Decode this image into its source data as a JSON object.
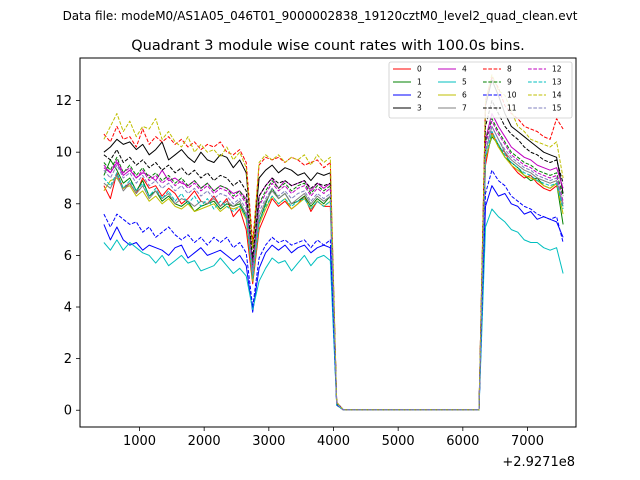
{
  "suptitle": "Data file: modeM0/AS1A05_046T01_9000002838_19120cztM0_level2_quad_clean.evt",
  "chart_data": {
    "type": "line",
    "title": "Quadrant 3 module wise count rates with 100.0s bins.",
    "xlabel": "",
    "ylabel": "",
    "x_offset_label": "+2.9271e8",
    "xlim": [
      80,
      7750
    ],
    "ylim": [
      -0.65,
      13.65
    ],
    "x_ticks": [
      1000,
      2000,
      3000,
      4000,
      5000,
      6000,
      7000
    ],
    "x_tick_labels": [
      "1000",
      "2000",
      "3000",
      "4000",
      "5000",
      "6000",
      "7000"
    ],
    "y_ticks": [
      0,
      2,
      4,
      6,
      8,
      10,
      12
    ],
    "y_tick_labels": [
      "0",
      "2",
      "4",
      "6",
      "8",
      "10",
      "12"
    ],
    "legend_position": "top-right",
    "legend_columns": 4,
    "x": [
      450,
      550,
      650,
      750,
      850,
      950,
      1050,
      1150,
      1250,
      1350,
      1450,
      1550,
      1650,
      1750,
      1850,
      1950,
      2050,
      2150,
      2250,
      2350,
      2450,
      2550,
      2650,
      2750,
      2850,
      2950,
      3050,
      3150,
      3250,
      3350,
      3450,
      3550,
      3650,
      3750,
      3850,
      3950,
      4050,
      4150,
      6250,
      6350,
      6450,
      6550,
      6650,
      6750,
      6850,
      6950,
      7050,
      7150,
      7250,
      7350,
      7450,
      7550
    ],
    "series": [
      {
        "name": "0",
        "color": "#ff0000",
        "style": "solid",
        "values": [
          8.7,
          8.2,
          9.2,
          8.6,
          8.8,
          8.4,
          9.0,
          8.6,
          8.7,
          8.3,
          8.6,
          8.4,
          8.0,
          8.2,
          8.5,
          8.1,
          8.0,
          8.3,
          7.9,
          8.2,
          7.5,
          7.8,
          7.0,
          4.9,
          7.0,
          7.6,
          8.2,
          7.9,
          8.1,
          7.8,
          8.0,
          8.3,
          7.7,
          8.1,
          7.9,
          7.9,
          0.2,
          0.02,
          0.02,
          9.5,
          10.8,
          10.2,
          10.0,
          9.5,
          9.2,
          9.0,
          9.1,
          8.8,
          8.6,
          8.5,
          8.7,
          8.0
        ]
      },
      {
        "name": "1",
        "color": "#008000",
        "style": "solid",
        "values": [
          9.1,
          9.7,
          9.3,
          8.8,
          9.0,
          8.5,
          8.9,
          8.3,
          8.5,
          8.1,
          8.3,
          8.0,
          7.9,
          8.1,
          7.7,
          7.9,
          8.0,
          8.1,
          7.8,
          8.0,
          7.9,
          8.0,
          7.5,
          5.0,
          7.3,
          8.0,
          8.6,
          8.2,
          8.4,
          8.0,
          8.1,
          8.3,
          7.9,
          8.2,
          8.0,
          8.3,
          0.2,
          0.02,
          0.02,
          9.8,
          10.6,
          10.3,
          9.8,
          9.6,
          9.4,
          9.1,
          8.9,
          9.0,
          8.7,
          8.6,
          8.8,
          7.2
        ]
      },
      {
        "name": "2",
        "color": "#0000ff",
        "style": "solid",
        "values": [
          7.2,
          6.6,
          7.1,
          6.6,
          6.4,
          6.5,
          6.2,
          6.4,
          6.3,
          6.2,
          6.0,
          6.3,
          6.4,
          5.9,
          6.1,
          6.3,
          6.0,
          6.1,
          6.2,
          6.0,
          5.8,
          6.0,
          5.6,
          3.8,
          5.5,
          6.1,
          6.4,
          6.2,
          6.4,
          6.1,
          6.3,
          6.4,
          6.1,
          6.3,
          6.4,
          6.3,
          0.2,
          0.02,
          0.02,
          7.9,
          8.7,
          8.3,
          8.4,
          8.0,
          7.9,
          7.6,
          7.7,
          7.4,
          7.5,
          7.4,
          7.3,
          6.7
        ]
      },
      {
        "name": "3",
        "color": "#000000",
        "style": "solid",
        "values": [
          10.0,
          10.2,
          10.5,
          10.3,
          10.4,
          10.1,
          10.3,
          9.9,
          10.1,
          10.4,
          9.7,
          9.9,
          10.1,
          9.8,
          9.6,
          10.0,
          9.7,
          9.6,
          9.9,
          9.8,
          9.4,
          9.7,
          9.2,
          6.3,
          9.0,
          9.3,
          9.5,
          9.2,
          9.4,
          9.3,
          9.1,
          9.2,
          8.9,
          9.2,
          9.1,
          9.2,
          0.3,
          0.02,
          0.02,
          11.8,
          12.8,
          12.2,
          11.5,
          11.0,
          10.8,
          10.6,
          10.4,
          10.2,
          10.0,
          9.9,
          9.8,
          8.4
        ]
      },
      {
        "name": "4",
        "color": "#bf00bf",
        "style": "solid",
        "values": [
          9.4,
          9.2,
          9.6,
          9.1,
          9.3,
          9.0,
          9.2,
          9.1,
          8.9,
          9.3,
          8.9,
          9.0,
          8.8,
          8.7,
          8.9,
          8.6,
          8.8,
          8.5,
          8.7,
          8.6,
          8.4,
          8.5,
          8.2,
          5.7,
          8.3,
          8.7,
          9.0,
          8.6,
          8.9,
          8.7,
          8.8,
          8.9,
          8.5,
          8.8,
          8.6,
          8.8,
          0.25,
          0.02,
          0.02,
          10.5,
          11.5,
          11.0,
          10.6,
          10.2,
          10.0,
          9.8,
          9.7,
          9.5,
          9.4,
          9.3,
          9.4,
          8.6
        ]
      },
      {
        "name": "5",
        "color": "#00bfbf",
        "style": "solid",
        "values": [
          6.5,
          6.2,
          6.6,
          6.2,
          6.5,
          6.3,
          6.1,
          6.0,
          5.7,
          6.0,
          5.6,
          5.8,
          6.0,
          5.7,
          5.8,
          5.4,
          5.5,
          5.6,
          5.9,
          5.6,
          5.3,
          5.5,
          5.2,
          3.9,
          5.0,
          5.5,
          5.9,
          5.7,
          5.8,
          5.4,
          5.7,
          6.0,
          5.6,
          5.9,
          6.0,
          5.8,
          0.2,
          0.02,
          0.02,
          7.1,
          7.8,
          7.5,
          7.3,
          7.0,
          6.9,
          6.6,
          6.5,
          6.5,
          6.3,
          6.2,
          6.3,
          5.3
        ]
      },
      {
        "name": "6",
        "color": "#bfbf00",
        "style": "solid",
        "values": [
          8.5,
          8.9,
          9.0,
          8.6,
          8.7,
          8.3,
          8.5,
          8.1,
          8.3,
          8.0,
          8.2,
          7.9,
          7.8,
          8.0,
          7.7,
          7.8,
          7.9,
          8.0,
          7.7,
          7.9,
          7.8,
          7.9,
          7.4,
          5.0,
          7.2,
          7.8,
          8.3,
          8.0,
          8.2,
          7.8,
          8.0,
          8.2,
          7.8,
          8.1,
          7.9,
          8.1,
          0.2,
          0.02,
          0.02,
          9.7,
          10.7,
          10.2,
          9.8,
          9.5,
          9.3,
          9.1,
          9.0,
          8.9,
          8.7,
          8.6,
          8.8,
          7.6
        ]
      },
      {
        "name": "7",
        "color": "#808080",
        "style": "solid",
        "values": [
          8.8,
          8.6,
          9.1,
          8.5,
          8.8,
          8.4,
          8.7,
          8.2,
          8.5,
          8.2,
          8.4,
          8.0,
          8.2,
          8.1,
          7.9,
          8.1,
          8.0,
          8.2,
          7.9,
          8.1,
          7.9,
          8.1,
          7.6,
          5.2,
          7.5,
          8.1,
          8.5,
          8.2,
          8.4,
          8.0,
          8.2,
          8.4,
          8.0,
          8.3,
          8.1,
          8.3,
          0.2,
          0.02,
          0.02,
          10.0,
          11.0,
          10.5,
          10.0,
          9.7,
          9.5,
          9.3,
          9.2,
          9.0,
          8.9,
          8.8,
          8.9,
          7.9
        ]
      },
      {
        "name": "8",
        "color": "#ff0000",
        "style": "dashed",
        "values": [
          10.7,
          10.4,
          11.0,
          10.5,
          10.6,
          10.2,
          10.9,
          10.3,
          10.6,
          10.4,
          10.6,
          10.3,
          10.5,
          10.2,
          10.4,
          10.1,
          10.3,
          10.2,
          10.4,
          10.0,
          9.9,
          10.1,
          9.6,
          6.5,
          9.5,
          9.8,
          9.7,
          9.8,
          9.6,
          9.8,
          9.7,
          9.5,
          9.6,
          9.7,
          9.4,
          9.6,
          0.3,
          0.02,
          0.02,
          12.0,
          12.9,
          12.5,
          11.8,
          11.5,
          11.3,
          11.0,
          10.9,
          10.8,
          10.6,
          10.5,
          11.3,
          10.9
        ]
      },
      {
        "name": "9",
        "color": "#008000",
        "style": "dashed",
        "values": [
          9.6,
          9.3,
          9.8,
          9.2,
          9.5,
          9.1,
          9.4,
          9.0,
          9.2,
          8.9,
          9.1,
          8.8,
          9.0,
          8.7,
          8.9,
          8.6,
          8.8,
          8.5,
          8.7,
          8.6,
          8.3,
          8.5,
          8.1,
          5.6,
          8.0,
          8.5,
          8.9,
          8.6,
          8.8,
          8.5,
          8.7,
          8.8,
          8.4,
          8.7,
          8.5,
          8.7,
          0.25,
          0.02,
          0.02,
          10.4,
          11.3,
          10.8,
          10.4,
          10.0,
          9.8,
          9.6,
          9.5,
          9.3,
          9.2,
          9.1,
          9.2,
          8.3
        ]
      },
      {
        "name": "10",
        "color": "#0000ff",
        "style": "dashed",
        "values": [
          7.6,
          7.1,
          7.6,
          7.4,
          7.2,
          7.3,
          6.9,
          7.1,
          6.7,
          6.9,
          7.1,
          6.8,
          6.6,
          6.8,
          6.5,
          6.7,
          6.4,
          6.7,
          6.5,
          6.7,
          6.3,
          6.5,
          6.1,
          4.0,
          5.9,
          6.4,
          6.7,
          6.5,
          6.6,
          6.4,
          6.5,
          6.6,
          6.3,
          6.6,
          6.4,
          6.6,
          0.2,
          0.02,
          0.02,
          8.4,
          9.3,
          8.9,
          8.7,
          8.3,
          8.1,
          7.9,
          7.8,
          7.6,
          7.5,
          7.4,
          7.5,
          6.5
        ]
      },
      {
        "name": "11",
        "color": "#000000",
        "style": "dashed",
        "values": [
          9.9,
          9.7,
          10.1,
          9.6,
          9.8,
          9.5,
          9.7,
          9.4,
          9.6,
          9.3,
          9.5,
          9.2,
          9.4,
          9.1,
          9.3,
          9.0,
          9.2,
          8.9,
          9.1,
          9.0,
          8.7,
          8.9,
          8.5,
          5.9,
          8.3,
          8.7,
          9.0,
          8.8,
          8.9,
          8.7,
          8.8,
          8.9,
          8.6,
          8.8,
          8.7,
          8.8,
          0.3,
          0.02,
          0.02,
          11.0,
          12.0,
          11.5,
          11.0,
          10.7,
          10.5,
          10.2,
          10.0,
          9.9,
          9.7,
          9.6,
          9.7,
          8.8
        ]
      },
      {
        "name": "12",
        "color": "#bf00bf",
        "style": "dashed",
        "values": [
          9.5,
          9.2,
          9.7,
          9.2,
          9.4,
          9.0,
          9.3,
          8.9,
          9.1,
          8.8,
          9.0,
          8.7,
          8.9,
          8.6,
          8.8,
          8.5,
          8.7,
          8.4,
          8.6,
          8.5,
          8.2,
          8.4,
          8.0,
          5.5,
          7.9,
          8.4,
          8.8,
          8.5,
          8.7,
          8.4,
          8.6,
          8.7,
          8.3,
          8.6,
          8.4,
          8.6,
          0.25,
          0.02,
          0.02,
          10.3,
          11.2,
          10.7,
          10.3,
          9.9,
          9.7,
          9.5,
          9.4,
          9.2,
          9.1,
          9.0,
          9.1,
          8.1
        ]
      },
      {
        "name": "13",
        "color": "#00bfbf",
        "style": "dashed",
        "values": [
          9.0,
          8.7,
          9.2,
          8.6,
          8.9,
          8.5,
          8.8,
          8.3,
          8.6,
          8.2,
          8.5,
          8.1,
          8.4,
          8.0,
          8.3,
          7.9,
          8.2,
          7.8,
          8.1,
          7.9,
          7.7,
          7.9,
          7.5,
          5.1,
          7.3,
          7.9,
          8.3,
          8.0,
          8.2,
          7.9,
          8.1,
          8.2,
          7.8,
          8.1,
          7.9,
          8.1,
          0.2,
          0.02,
          0.02,
          9.8,
          10.8,
          10.3,
          9.9,
          9.6,
          9.4,
          9.2,
          9.1,
          8.9,
          8.8,
          8.7,
          8.8,
          7.8
        ]
      },
      {
        "name": "14",
        "color": "#bfbf00",
        "style": "dashed",
        "values": [
          10.5,
          11.0,
          11.5,
          10.8,
          11.2,
          10.6,
          11.0,
          10.9,
          11.3,
          10.5,
          10.8,
          10.4,
          10.2,
          10.6,
          10.0,
          10.3,
          10.0,
          10.1,
          9.8,
          10.2,
          9.7,
          10.0,
          9.4,
          6.3,
          9.6,
          9.9,
          9.7,
          9.9,
          9.6,
          9.8,
          9.7,
          9.9,
          9.5,
          9.9,
          9.6,
          9.8,
          0.3,
          0.02,
          0.02,
          12.0,
          13.0,
          12.4,
          12.2,
          11.6,
          11.0,
          10.8,
          10.5,
          10.4,
          10.3,
          10.2,
          10.4,
          9.0
        ]
      },
      {
        "name": "15",
        "color": "#8080bf",
        "style": "dashed",
        "values": [
          9.3,
          9.0,
          9.5,
          9.0,
          9.2,
          8.8,
          9.1,
          8.7,
          8.9,
          8.6,
          8.8,
          8.5,
          8.7,
          8.4,
          8.6,
          8.3,
          8.5,
          8.2,
          8.4,
          8.3,
          8.0,
          8.2,
          7.8,
          5.3,
          7.7,
          8.2,
          8.6,
          8.3,
          8.5,
          8.2,
          8.4,
          8.5,
          8.1,
          8.4,
          8.2,
          8.4,
          0.25,
          0.02,
          0.02,
          10.1,
          11.0,
          10.5,
          10.1,
          9.8,
          9.6,
          9.4,
          9.3,
          9.1,
          9.0,
          8.9,
          9.0,
          8.0
        ]
      }
    ]
  }
}
